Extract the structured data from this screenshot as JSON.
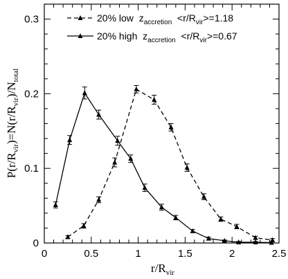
{
  "chart_data": {
    "type": "line",
    "title": "",
    "xlabel": {
      "main": "r/R",
      "sub": "vir"
    },
    "ylabel": {
      "p1": "P(r/R",
      "sub1": "vir",
      "p2": ")=N(r/R",
      "sub2": "vir",
      "p3": ")/N",
      "sub3": "total"
    },
    "xlim": [
      0,
      2.5
    ],
    "ylim": [
      0,
      0.32
    ],
    "xticks": [
      0,
      0.5,
      1,
      1.5,
      2,
      2.5
    ],
    "xtick_labels": [
      "0",
      "0.5",
      "1",
      "1.5",
      "2",
      "2.5"
    ],
    "yticks": [
      0,
      0.1,
      0.2,
      0.3
    ],
    "ytick_labels": [
      "0",
      "0.1",
      "0.2",
      "0.3"
    ],
    "grid": false,
    "legend_position": "top-right",
    "series": [
      {
        "name": "20% low z_accretion <r/R_vir>=1.18",
        "legend": {
          "p1": "20% low  z",
          "sub1": "accretion",
          "p2": "  <r/R",
          "sub2": "vir",
          "p3": ">=1.18"
        },
        "style": "dashed",
        "x": [
          0.25,
          0.42,
          0.58,
          0.75,
          0.98,
          1.17,
          1.35,
          1.52,
          1.7,
          1.88,
          2.05,
          2.25,
          2.43
        ],
        "y": [
          0.008,
          0.023,
          0.058,
          0.108,
          0.206,
          0.192,
          0.155,
          0.101,
          0.062,
          0.032,
          0.022,
          0.007,
          0.004
        ],
        "err": [
          0.002,
          0.003,
          0.004,
          0.006,
          0.005,
          0.006,
          0.005,
          0.005,
          0.004,
          0.003,
          0.003,
          0.002,
          0.002
        ]
      },
      {
        "name": "20% high z_accretion <r/R_vir>=0.67",
        "legend": {
          "p1": "20% high  z",
          "sub1": "accretion",
          "p2": "  <r/R",
          "sub2": "vir",
          "p3": ">=0.67"
        },
        "style": "solid",
        "x": [
          0.12,
          0.27,
          0.43,
          0.58,
          0.78,
          0.92,
          1.07,
          1.25,
          1.4,
          1.58,
          1.75,
          1.92,
          2.07,
          2.25,
          2.42
        ],
        "y": [
          0.051,
          0.138,
          0.201,
          0.172,
          0.137,
          0.113,
          0.074,
          0.048,
          0.034,
          0.016,
          0.006,
          0.003,
          0.001,
          0.001,
          0.0005
        ],
        "err": [
          0.004,
          0.006,
          0.008,
          0.006,
          0.006,
          0.005,
          0.005,
          0.004,
          0.003,
          0.002,
          0.002,
          0.001,
          0.001,
          0.001,
          0.001
        ]
      }
    ]
  }
}
